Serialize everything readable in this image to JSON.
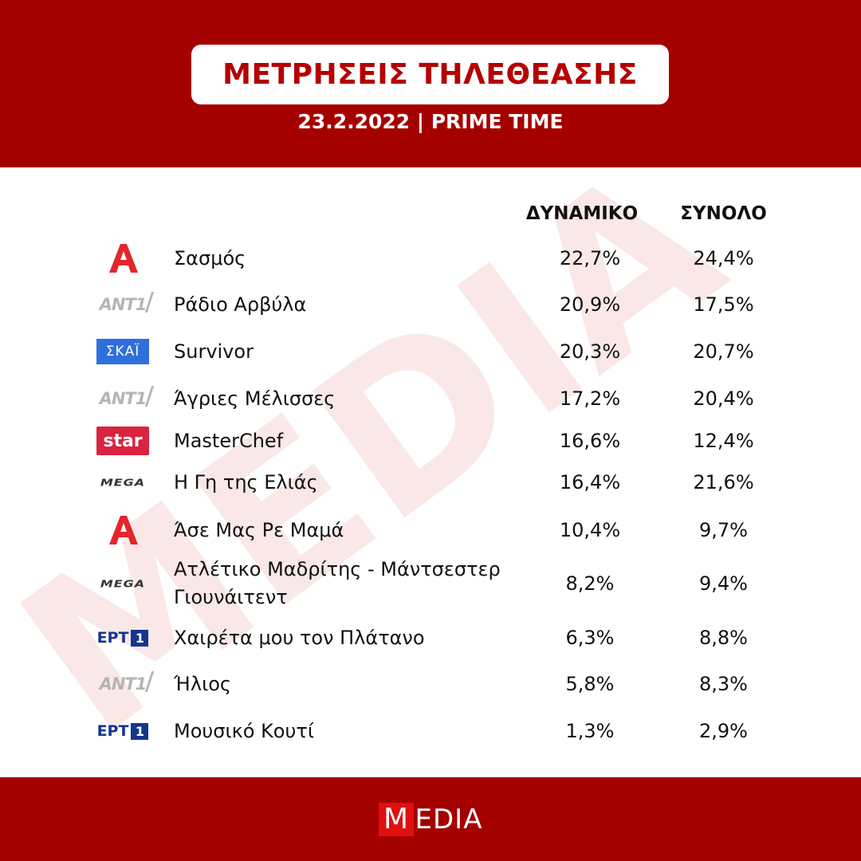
{
  "header": {
    "title": "ΜΕΤΡΗΣΕΙΣ ΤΗΛΕΘΕΑΣΗΣ",
    "subtitle": "23.2.2022 | PRIME TIME"
  },
  "columns": {
    "dynamiko": "ΔΥΝΑΜΙΚΟ",
    "synolo": "ΣΥΝΟΛΟ"
  },
  "rows": [
    {
      "channel": "alpha",
      "logo_text": "",
      "show": "Σασμός",
      "dynamiko": "22,7%",
      "synolo": "24,4%"
    },
    {
      "channel": "ant1",
      "logo_text": "ANT1",
      "show": "Ράδιο Αρβύλα",
      "dynamiko": "20,9%",
      "synolo": "17,5%"
    },
    {
      "channel": "skai",
      "logo_text": "ΣΚΑΪ",
      "show": "Survivor",
      "dynamiko": "20,3%",
      "synolo": "20,7%"
    },
    {
      "channel": "ant1",
      "logo_text": "ANT1",
      "show": "Άγριες Μέλισσες",
      "dynamiko": "17,2%",
      "synolo": "20,4%"
    },
    {
      "channel": "star",
      "logo_text": "star",
      "show": "MasterChef",
      "dynamiko": "16,6%",
      "synolo": "12,4%"
    },
    {
      "channel": "mega",
      "logo_text": "MEGA",
      "show": "Η Γη της Ελιάς",
      "dynamiko": "16,4%",
      "synolo": "21,6%"
    },
    {
      "channel": "alpha",
      "logo_text": "",
      "show": "Άσε Μας Ρε Μαμά",
      "dynamiko": "10,4%",
      "synolo": "9,7%"
    },
    {
      "channel": "mega",
      "logo_text": "MEGA",
      "show": "Ατλέτικο Μαδρίτης - Μάντσεστερ Γιουνάιτεντ",
      "dynamiko": "8,2%",
      "synolo": "9,4%"
    },
    {
      "channel": "ert1",
      "logo_text": "ΕΡΤ",
      "logo_num": "1",
      "show": "Χαιρέτα μου τον Πλάτανο",
      "dynamiko": "6,3%",
      "synolo": "8,8%"
    },
    {
      "channel": "ant1",
      "logo_text": "ANT1",
      "show": "Ήλιος",
      "dynamiko": "5,8%",
      "synolo": "8,3%"
    },
    {
      "channel": "ert1",
      "logo_text": "ΕΡΤ",
      "logo_num": "1",
      "show": "Μουσικό Κουτί",
      "dynamiko": "1,3%",
      "synolo": "2,9%"
    }
  ],
  "watermark": "MEDIA",
  "footer": {
    "brand_first": "M",
    "brand_rest": "EDIA"
  },
  "colors": {
    "brand_red": "#a50000",
    "title_red": "#b50000",
    "alpha_red": "#e3262c",
    "skai_blue": "#2f6fdc",
    "star_red": "#d9233f",
    "ert_blue": "#16358f"
  }
}
